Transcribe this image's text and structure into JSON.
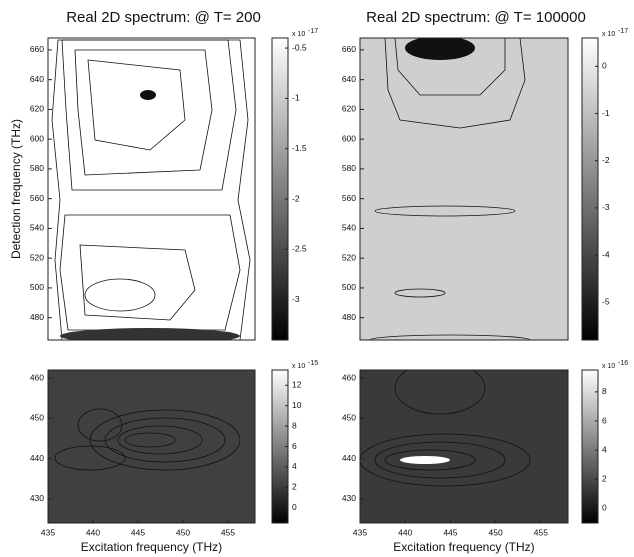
{
  "chart_data": [
    {
      "type": "contour",
      "title": "Real 2D spectrum: @ T= 200",
      "ylabel": "Detection frequency (THz)",
      "ylim": [
        465,
        668
      ],
      "yticks": [
        480,
        500,
        520,
        540,
        560,
        580,
        600,
        620,
        640,
        660
      ],
      "colorbar_lim": [
        -3.4,
        -0.4
      ],
      "colorbar_ticks": [
        -0.5,
        -1,
        -1.5,
        -2,
        -2.5,
        -3
      ],
      "colorbar_scale": "x 10",
      "colorbar_exponent": "-17"
    },
    {
      "type": "contour",
      "title": "Real 2D spectrum: @ T= 100000",
      "ylim": [
        465,
        668
      ],
      "yticks": [
        480,
        500,
        520,
        540,
        560,
        580,
        600,
        620,
        640,
        660
      ],
      "colorbar_lim": [
        -5.8,
        0.6
      ],
      "colorbar_ticks": [
        0,
        -1,
        -2,
        -3,
        -4,
        -5
      ],
      "colorbar_scale": "x 10",
      "colorbar_exponent": "-17"
    },
    {
      "type": "contour",
      "xlabel": "Excitation frequency (THz)",
      "xlim": [
        435,
        458
      ],
      "xticks": [
        435,
        440,
        445,
        450,
        455
      ],
      "ylim": [
        424,
        462
      ],
      "yticks": [
        430,
        440,
        450,
        460
      ],
      "colorbar_lim": [
        -1.5,
        13.5
      ],
      "colorbar_ticks": [
        0,
        2,
        4,
        6,
        8,
        10,
        12
      ],
      "colorbar_scale": "x 10",
      "colorbar_exponent": "-15"
    },
    {
      "type": "contour",
      "xlabel": "Excitation frequency (THz)",
      "xlim": [
        435,
        458
      ],
      "xticks": [
        435,
        440,
        445,
        450,
        455
      ],
      "ylim": [
        424,
        462
      ],
      "yticks": [
        430,
        440,
        450,
        460
      ],
      "colorbar_lim": [
        -1,
        9.5
      ],
      "colorbar_ticks": [
        0,
        2,
        4,
        6,
        8
      ],
      "colorbar_scale": "x 10",
      "colorbar_exponent": "-16"
    }
  ]
}
